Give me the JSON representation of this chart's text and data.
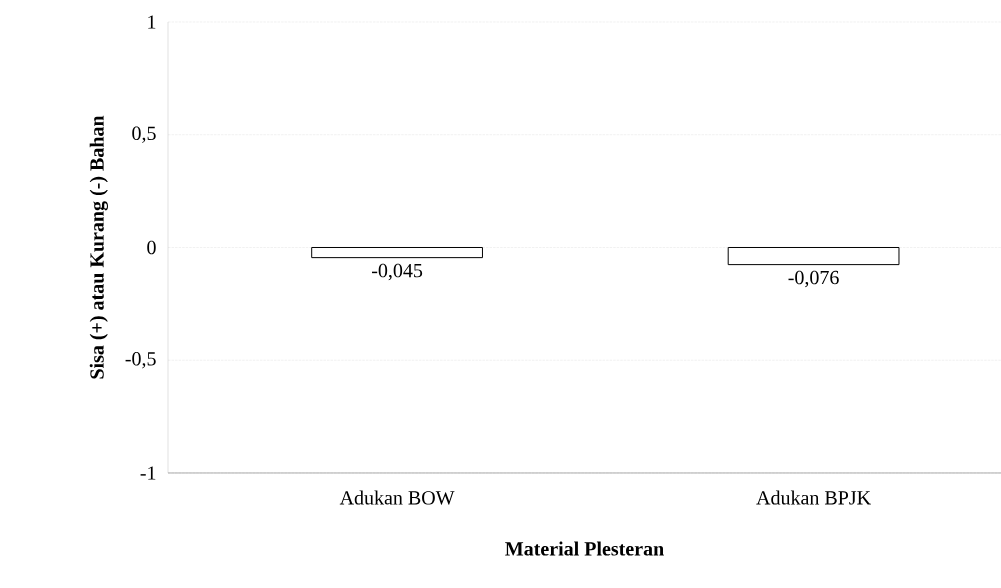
{
  "chart_data": {
    "type": "bar",
    "xlabel": "Material Plesteran",
    "ylabel": "Sisa (+) atau Kurang (-) Bahan",
    "categories": [
      "Adukan BOW",
      "Adukan BPJK"
    ],
    "values": [
      -0.045,
      -0.076
    ],
    "value_labels": [
      "-0,045",
      "-0,076"
    ],
    "color": "#ffffff",
    "ylim": [
      -1,
      1
    ],
    "yticks": [
      -1,
      {
        "value": -0.5,
        "label": "-0,5"
      },
      0,
      {
        "value": 0.5,
        "label": "0,5"
      },
      1
    ],
    "grid": "y"
  }
}
